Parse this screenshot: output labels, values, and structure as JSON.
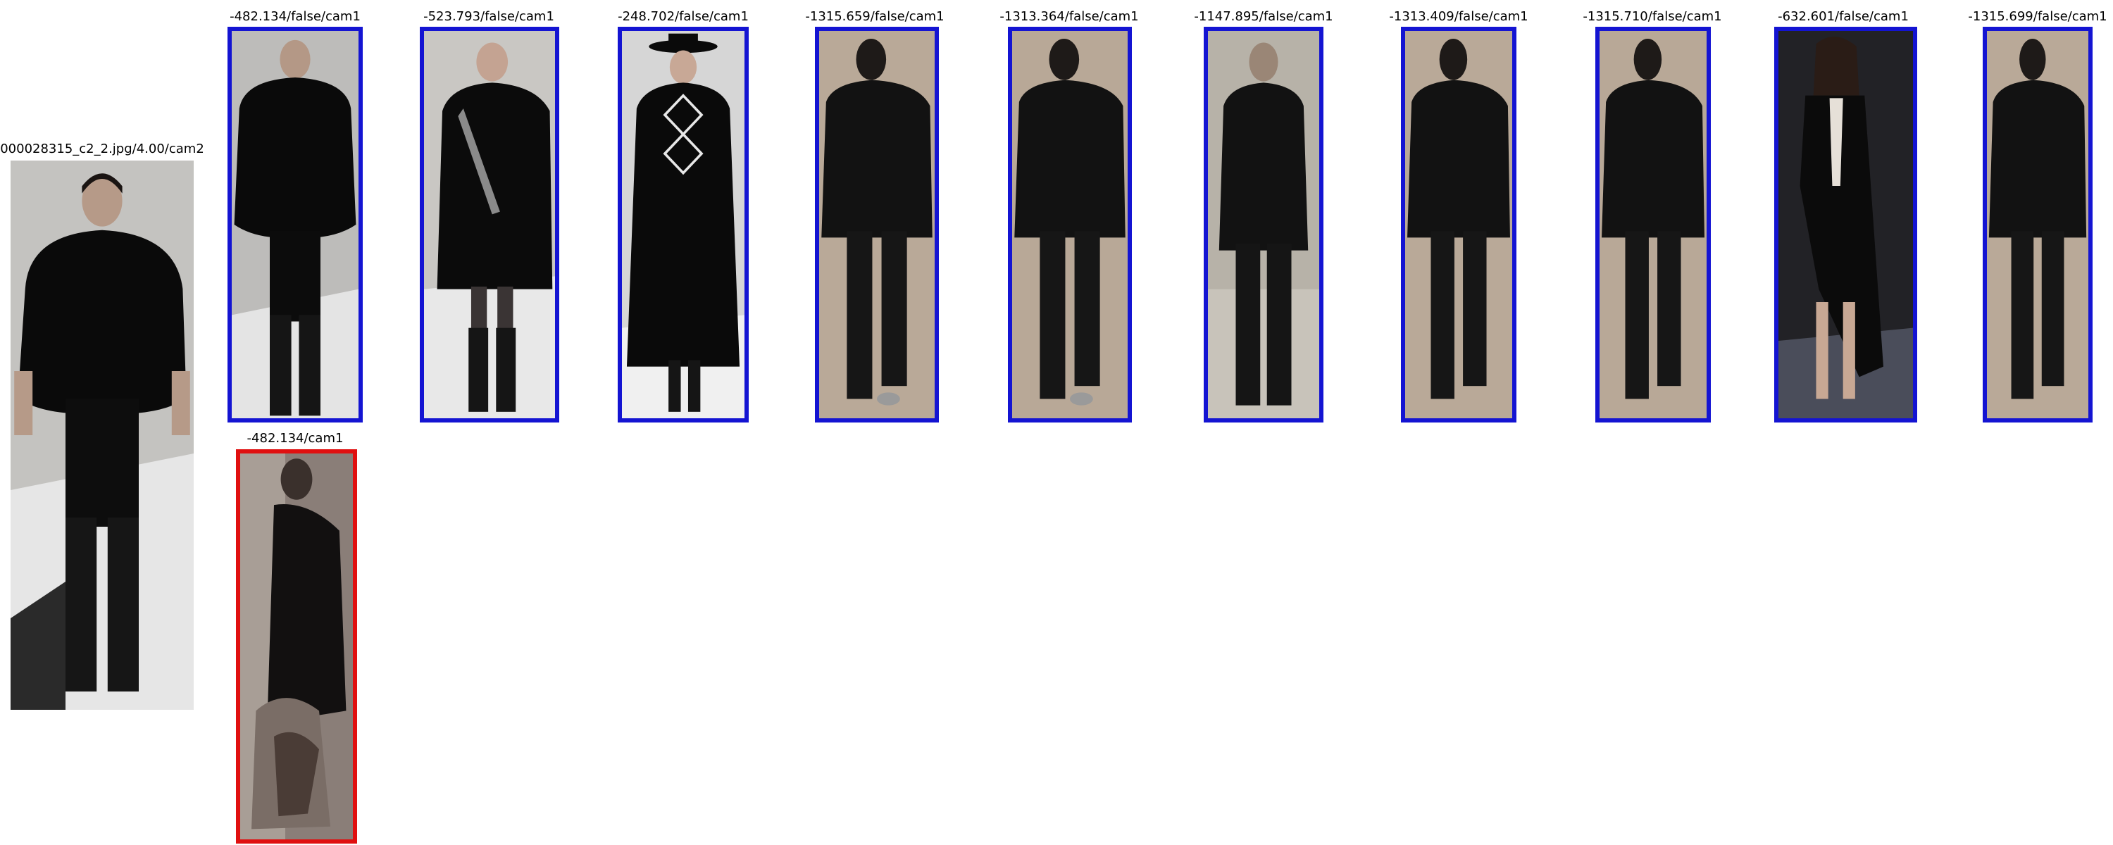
{
  "query": {
    "caption": "000028315_c2_2.jpg/4.00/cam2",
    "icon": "person-photo-runway-model-black-fur-coat"
  },
  "rank_row": [
    {
      "caption": "-482.134/false/cam1",
      "border": "#1414d2",
      "icon": "person-photo-model-fur-coat",
      "bg": "#bdbcba",
      "floor": "#e4e4e4"
    },
    {
      "caption": "-523.793/false/cam1",
      "border": "#1414d2",
      "icon": "person-photo-model-black-coat-boots",
      "bg": "#c9c7c3",
      "floor": "#e8e8e8"
    },
    {
      "caption": "-248.702/false/cam1",
      "border": "#1414d2",
      "icon": "person-photo-model-hat-argyle-sweater",
      "bg": "#d6d6d6",
      "floor": "#f0f0f0"
    },
    {
      "caption": "-1315.659/false/cam1",
      "border": "#1414d2",
      "icon": "person-photo-blurry-walker",
      "bg": "#b9a998",
      "floor": "#bfb3a6"
    },
    {
      "caption": "-1313.364/false/cam1",
      "border": "#1414d2",
      "icon": "person-photo-blurry-walker",
      "bg": "#b8a897",
      "floor": "#beb1a4"
    },
    {
      "caption": "-1147.895/false/cam1",
      "border": "#1414d2",
      "icon": "person-photo-man-dark-suit",
      "bg": "#b7b2a8",
      "floor": "#c8c3ba"
    },
    {
      "caption": "-1313.409/false/cam1",
      "border": "#1414d2",
      "icon": "person-photo-blurry-walker",
      "bg": "#b9a998",
      "floor": "#bfb3a6"
    },
    {
      "caption": "-1315.710/false/cam1",
      "border": "#1414d2",
      "icon": "person-photo-blurry-walker",
      "bg": "#b8a897",
      "floor": "#beb1a4"
    },
    {
      "caption": "-632.601/false/cam1",
      "border": "#1414d2",
      "icon": "person-photo-model-black-dress-sandals",
      "bg": "#222226",
      "floor": "#4a4d5a"
    },
    {
      "caption": "-1315.699/false/cam1",
      "border": "#1414d2",
      "icon": "person-photo-blurry-walker",
      "bg": "#b9a998",
      "floor": "#bfb3a6"
    }
  ],
  "second_row": [
    {
      "caption": "-482.134/cam1",
      "border": "#e01010",
      "icon": "person-photo-blurry-dark-figure",
      "bg": "#8a7e78",
      "floor": "#7a6d66"
    }
  ]
}
